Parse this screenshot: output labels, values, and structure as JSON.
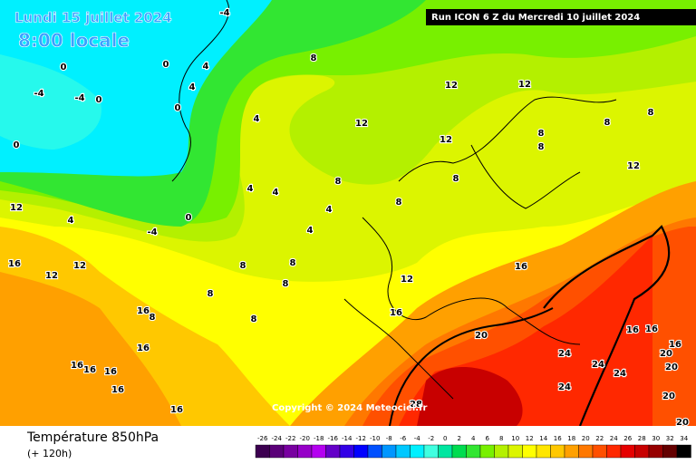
{
  "header": {
    "date": "Lundi 15 juillet 2024",
    "time": "8:00 locale",
    "run": "Run ICON 6 Z du Mercredi 10 juillet 2024"
  },
  "copyright": "Copyright © 2024 Meteociel.fr",
  "footer": {
    "title": "Température 850hPa",
    "lead": "(+ 120h)"
  },
  "legend": {
    "labels": [
      "-26",
      "-24",
      "-22",
      "-20",
      "-18",
      "-16",
      "-14",
      "-12",
      "-10",
      "-8",
      "-6",
      "-4",
      "-2",
      "0",
      "2",
      "4",
      "6",
      "8",
      "10",
      "12",
      "14",
      "16",
      "18",
      "20",
      "22",
      "24",
      "26",
      "28",
      "30",
      "32",
      "34"
    ],
    "colors": [
      "#3c0050",
      "#5a0078",
      "#7800a0",
      "#9600c8",
      "#b400f0",
      "#6400c8",
      "#3200e6",
      "#0000ff",
      "#0050ff",
      "#0096ff",
      "#00c8ff",
      "#00f0ff",
      "#40ffe0",
      "#00e6a0",
      "#00dc50",
      "#32e632",
      "#78f000",
      "#b4f000",
      "#dcf500",
      "#ffff00",
      "#ffe600",
      "#ffc800",
      "#ffa000",
      "#ff7800",
      "#ff5000",
      "#ff2800",
      "#e60000",
      "#c80000",
      "#960000",
      "#640000",
      "#000000"
    ]
  },
  "map": {
    "labels": [
      "-4",
      "0",
      "0",
      "4",
      "-4",
      "-4",
      "0",
      "0",
      "4",
      "0",
      "4",
      "8",
      "12",
      "12",
      "8",
      "4",
      "4",
      "4",
      "8",
      "8",
      "4",
      "-4",
      "0",
      "12",
      "12",
      "4",
      "16",
      "12",
      "8",
      "8",
      "8",
      "8",
      "8",
      "12",
      "16",
      "16",
      "16",
      "8",
      "16",
      "16",
      "16",
      "16",
      "16",
      "20",
      "24",
      "28",
      "24",
      "24",
      "24",
      "20",
      "16",
      "16",
      "20",
      "20",
      "16",
      "8",
      "8",
      "8",
      "8",
      "12",
      "12",
      "12",
      "16",
      "20"
    ]
  }
}
